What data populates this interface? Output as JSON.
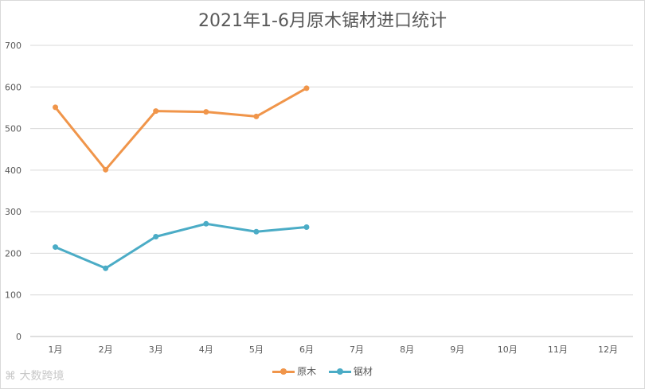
{
  "chart_data": {
    "type": "line",
    "title": "2021年1-6月原木锯材进口统计",
    "categories": [
      "1月",
      "2月",
      "3月",
      "4月",
      "5月",
      "6月",
      "7月",
      "8月",
      "9月",
      "10月",
      "11月",
      "12月"
    ],
    "yticks": [
      "0",
      "100",
      "200",
      "300",
      "400",
      "500",
      "600",
      "700"
    ],
    "ylim": [
      0,
      700
    ],
    "grid": true,
    "legend_position": "bottom",
    "series": [
      {
        "name": "原木",
        "color": "#f0954a",
        "values": [
          551,
          401,
          542,
          540,
          529,
          597,
          null,
          null,
          null,
          null,
          null,
          null
        ]
      },
      {
        "name": "锯材",
        "color": "#4bacc6",
        "values": [
          215,
          164,
          240,
          271,
          252,
          263,
          null,
          null,
          null,
          null,
          null,
          null
        ]
      }
    ]
  },
  "watermark": "大数跨境"
}
